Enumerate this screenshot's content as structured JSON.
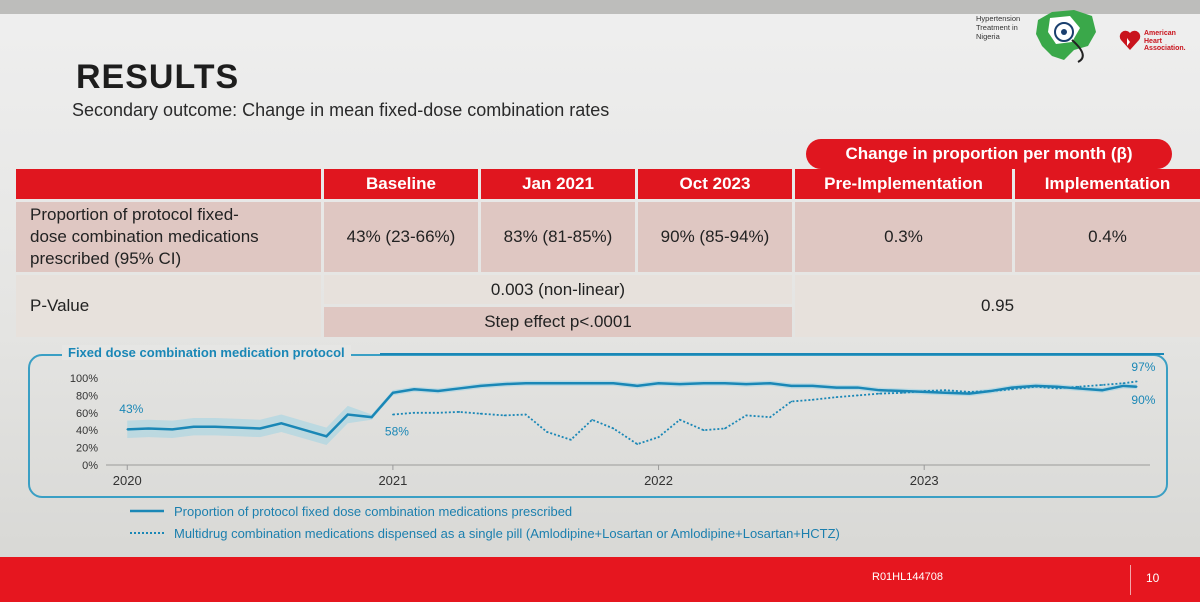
{
  "logos": {
    "htn_text": [
      "Hypertension",
      "Treatment in",
      "Nigeria"
    ],
    "aha_text": [
      "American",
      "Heart",
      "Association."
    ]
  },
  "title": "RESULTS",
  "subtitle": "Secondary outcome: Change in mean fixed-dose combination rates",
  "table": {
    "group_header": "Change in proportion per month (β)",
    "headers": [
      "Baseline",
      "Jan 2021",
      "Oct 2023",
      "Pre-Implementation",
      "Implementation"
    ],
    "row1": {
      "label_lines": [
        "Proportion of protocol fixed-",
        "dose combination medications",
        "prescribed (95% CI)"
      ],
      "values": [
        "43% (23-66%)",
        "83% (81-85%)",
        "90% (85-94%)",
        "0.3%",
        "0.4%"
      ]
    },
    "row2": {
      "label": "P-Value",
      "nonlinear": "0.003 (non-linear)",
      "step": "Step effect p<.0001",
      "beta_p": "0.95"
    }
  },
  "chart_data": {
    "type": "line",
    "title": "Fixed dose combination medication protocol",
    "y_ticks": [
      "100%",
      "80%",
      "60%",
      "40%",
      "20%",
      "0%"
    ],
    "ylim": [
      0,
      100
    ],
    "x_ticks": [
      "2020",
      "2021",
      "2022",
      "2023"
    ],
    "x_tick_values": [
      2020.0,
      2021.0,
      2022.0,
      2023.0
    ],
    "xlim": [
      2019.92,
      2023.85
    ],
    "annotations": [
      "43%",
      "58%",
      "97%",
      "90%"
    ],
    "series": [
      {
        "name": "Proportion of protocol fixed dose combination medications prescribed",
        "style": "solid",
        "x": [
          2020.0,
          2020.08,
          2020.17,
          2020.25,
          2020.33,
          2020.42,
          2020.5,
          2020.58,
          2020.67,
          2020.75,
          2020.83,
          2020.92,
          2021.0,
          2021.08,
          2021.17,
          2021.25,
          2021.33,
          2021.42,
          2021.5,
          2021.58,
          2021.67,
          2021.75,
          2021.83,
          2021.92,
          2022.0,
          2022.08,
          2022.17,
          2022.25,
          2022.33,
          2022.42,
          2022.5,
          2022.58,
          2022.67,
          2022.75,
          2022.83,
          2022.92,
          2023.0,
          2023.08,
          2023.17,
          2023.25,
          2023.33,
          2023.42,
          2023.5,
          2023.58,
          2023.67,
          2023.75,
          2023.8
        ],
        "y": [
          41,
          42,
          41,
          44,
          44,
          43,
          42,
          48,
          40,
          33,
          58,
          55,
          83,
          87,
          85,
          88,
          91,
          93,
          94,
          94,
          94,
          94,
          94,
          91,
          94,
          93,
          94,
          94,
          93,
          94,
          91,
          91,
          89,
          89,
          86,
          85,
          84,
          83,
          82,
          85,
          89,
          91,
          90,
          88,
          86,
          91,
          90
        ]
      },
      {
        "name": "Multidrug combination medications dispensed as a single pill (Amlodipine+Losartan or Amlodipine+Losartan+HCTZ)",
        "style": "dotted",
        "x": [
          2021.0,
          2021.08,
          2021.17,
          2021.25,
          2021.33,
          2021.42,
          2021.5,
          2021.58,
          2021.67,
          2021.75,
          2021.83,
          2021.92,
          2022.0,
          2022.08,
          2022.17,
          2022.25,
          2022.33,
          2022.42,
          2022.5,
          2022.58,
          2022.67,
          2022.75,
          2022.83,
          2022.92,
          2023.0,
          2023.08,
          2023.17,
          2023.25,
          2023.33,
          2023.42,
          2023.5,
          2023.58,
          2023.67,
          2023.75,
          2023.8
        ],
        "y": [
          58,
          60,
          60,
          61,
          59,
          57,
          58,
          38,
          29,
          52,
          42,
          24,
          32,
          52,
          40,
          42,
          57,
          55,
          73,
          75,
          78,
          80,
          82,
          83,
          85,
          86,
          84,
          85,
          87,
          90,
          88,
          90,
          92,
          94,
          96
        ]
      }
    ]
  },
  "colors": {
    "accent": "#e0161f",
    "line": "#1a87b6",
    "band": "#9fd3e3"
  },
  "footer": {
    "grant": "R01HL144708",
    "page": "10"
  }
}
